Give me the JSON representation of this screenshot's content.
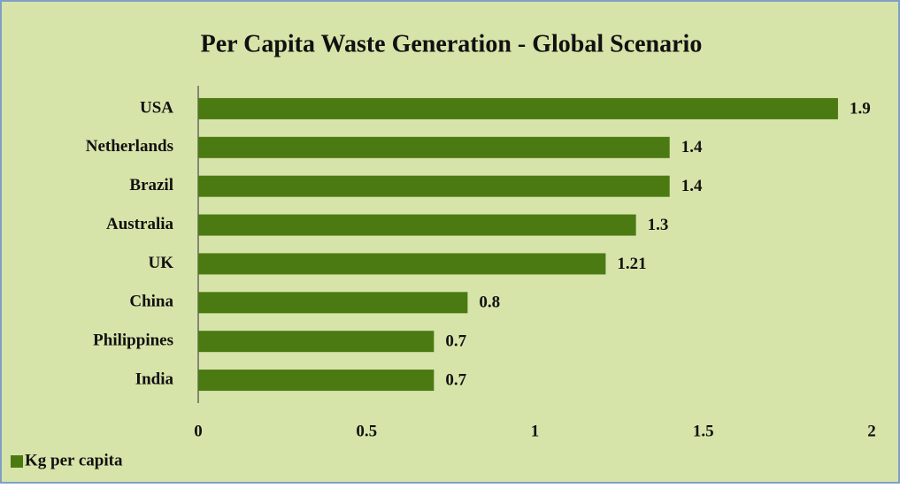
{
  "chart_data": {
    "type": "bar",
    "orientation": "horizontal",
    "title": "Per Capita Waste Generation - Global Scenario",
    "categories": [
      "USA",
      "Netherlands",
      "Brazil",
      "Australia",
      "UK",
      "China",
      "Philippines",
      "India"
    ],
    "series": [
      {
        "name": "Kg per capita",
        "color": "#4b7a12",
        "values": [
          1.9,
          1.4,
          1.4,
          1.3,
          1.21,
          0.8,
          0.7,
          0.7
        ]
      }
    ],
    "xlim": [
      0,
      2
    ],
    "xticks": [
      0,
      0.5,
      1,
      1.5,
      2
    ],
    "grid": false,
    "legend": "bottom-left"
  }
}
